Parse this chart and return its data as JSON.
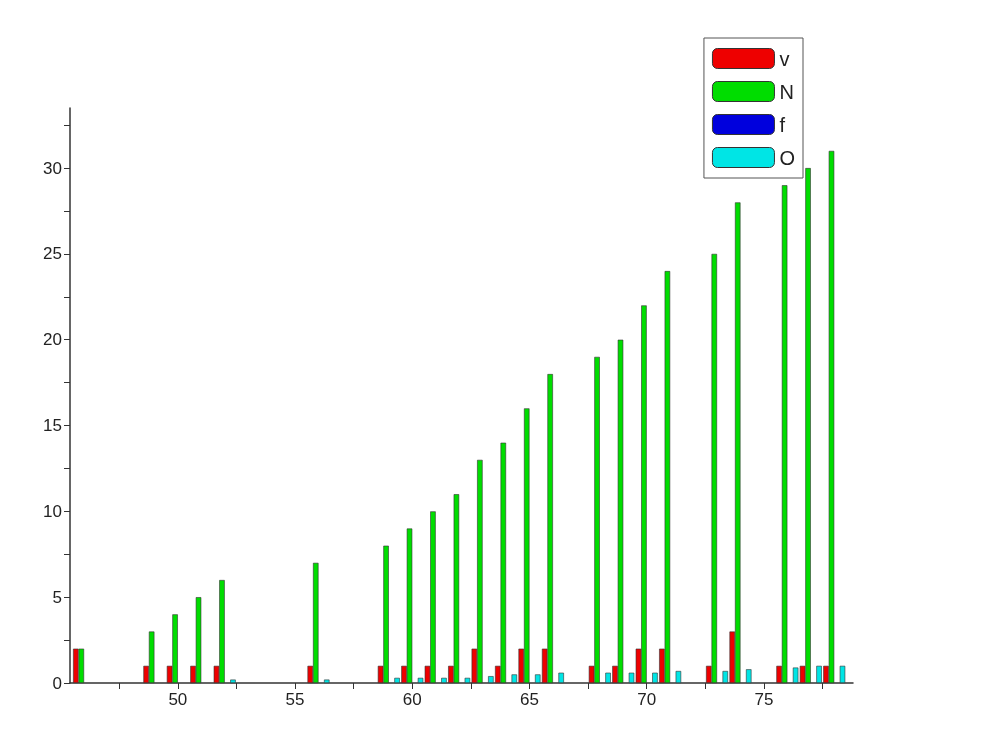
{
  "chart_data": {
    "type": "bar",
    "x": [
      46,
      49,
      50,
      51,
      52,
      56,
      59,
      60,
      61,
      62,
      63,
      64,
      65,
      66,
      68,
      69,
      70,
      71,
      73,
      74,
      76,
      77,
      78
    ],
    "series": [
      {
        "name": "v",
        "color": "#ee0000",
        "values": [
          2,
          1,
          1,
          1,
          1,
          1,
          1,
          1,
          1,
          1,
          2,
          1,
          2,
          2,
          1,
          1,
          2,
          2,
          1,
          3,
          1,
          1,
          1
        ]
      },
      {
        "name": "N",
        "color": "#00dd00",
        "values": [
          2,
          3,
          4,
          5,
          6,
          7,
          8,
          9,
          10,
          11,
          13,
          14,
          16,
          18,
          19,
          20,
          22,
          24,
          25,
          28,
          29,
          30,
          31
        ]
      },
      {
        "name": "f",
        "color": "#0000dd",
        "values": [
          null,
          null,
          null,
          null,
          null,
          null,
          null,
          null,
          null,
          null,
          null,
          null,
          null,
          null,
          null,
          null,
          null,
          null,
          null,
          null,
          null,
          null,
          null
        ]
      },
      {
        "name": "O",
        "color": "#00e5e5",
        "values": [
          null,
          null,
          null,
          null,
          0.2,
          0.2,
          0.3,
          0.3,
          0.3,
          0.3,
          0.4,
          0.5,
          0.5,
          0.6,
          0.6,
          0.6,
          0.6,
          0.7,
          0.7,
          0.8,
          0.9,
          1,
          1
        ]
      }
    ],
    "xlim": [
      45.4,
      78.8
    ],
    "xticks": [
      {
        "value": 47.5,
        "label": null
      },
      50,
      {
        "value": 52.5,
        "label": null
      },
      55,
      {
        "value": 57.5,
        "label": null
      },
      60,
      {
        "value": 62.5,
        "label": null
      },
      65,
      {
        "value": 67.5,
        "label": null
      },
      70,
      {
        "value": 72.5,
        "label": null
      },
      75,
      {
        "value": 77.5,
        "label": null
      }
    ],
    "ylim": [
      0,
      33.5
    ],
    "yticks": [
      0,
      {
        "value": 2.5,
        "label": null
      },
      5,
      {
        "value": 7.5,
        "label": null
      },
      10,
      {
        "value": 12.5,
        "label": null
      },
      15,
      {
        "value": 17.5,
        "label": null
      },
      20,
      {
        "value": 22.5,
        "label": null
      },
      25,
      {
        "value": 27.5,
        "label": null
      },
      30,
      {
        "value": 32.5,
        "label": null
      }
    ],
    "grid": false,
    "legend": "top right"
  }
}
